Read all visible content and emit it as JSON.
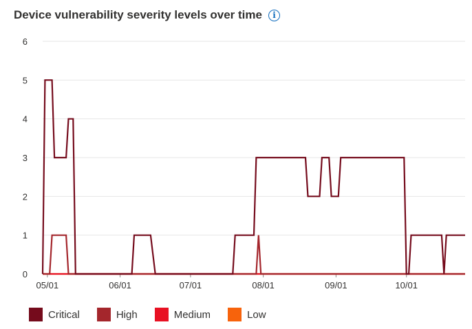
{
  "header": {
    "title": "Device vulnerability severity levels over time",
    "info_glyph": "i"
  },
  "chart_data": {
    "type": "line",
    "title": "Device vulnerability severity levels over time",
    "xlabel": "",
    "ylabel": "",
    "ylim": [
      0,
      6
    ],
    "y_ticks": [
      0,
      1,
      2,
      3,
      4,
      5,
      6
    ],
    "x_range": [
      "2023-04-29",
      "2023-10-26"
    ],
    "x_ticks": [
      {
        "date": "2023-05-01",
        "label": "05/01"
      },
      {
        "date": "2023-06-01",
        "label": "06/01"
      },
      {
        "date": "2023-07-01",
        "label": "07/01"
      },
      {
        "date": "2023-08-01",
        "label": "08/01"
      },
      {
        "date": "2023-09-01",
        "label": "09/01"
      },
      {
        "date": "2023-10-01",
        "label": "10/01"
      }
    ],
    "grid": true,
    "legend_position": "bottom-left",
    "series": [
      {
        "name": "Low",
        "color": "#f7630c",
        "points": [
          [
            "2023-04-29",
            0
          ],
          [
            "2023-10-26",
            0
          ]
        ]
      },
      {
        "name": "Medium",
        "color": "#e81123",
        "points": [
          [
            "2023-04-29",
            0
          ],
          [
            "2023-10-26",
            0
          ]
        ]
      },
      {
        "name": "High",
        "color": "#a4262c",
        "points": [
          [
            "2023-04-29",
            0
          ],
          [
            "2023-05-02",
            0
          ],
          [
            "2023-05-03",
            1
          ],
          [
            "2023-05-09",
            1
          ],
          [
            "2023-05-10",
            0
          ],
          [
            "2023-07-29",
            0
          ],
          [
            "2023-07-30",
            1
          ],
          [
            "2023-07-31",
            0
          ],
          [
            "2023-10-26",
            0
          ]
        ]
      },
      {
        "name": "Critical",
        "color": "#750b1c",
        "points": [
          [
            "2023-04-29",
            0
          ],
          [
            "2023-04-30",
            5
          ],
          [
            "2023-05-03",
            5
          ],
          [
            "2023-05-04",
            3
          ],
          [
            "2023-05-09",
            3
          ],
          [
            "2023-05-10",
            4
          ],
          [
            "2023-05-12",
            4
          ],
          [
            "2023-05-13",
            0
          ],
          [
            "2023-06-06",
            0
          ],
          [
            "2023-06-07",
            1
          ],
          [
            "2023-06-14",
            1
          ],
          [
            "2023-06-16",
            0
          ],
          [
            "2023-07-19",
            0
          ],
          [
            "2023-07-20",
            1
          ],
          [
            "2023-07-28",
            1
          ],
          [
            "2023-07-29",
            3
          ],
          [
            "2023-08-19",
            3
          ],
          [
            "2023-08-20",
            2
          ],
          [
            "2023-08-25",
            2
          ],
          [
            "2023-08-26",
            3
          ],
          [
            "2023-08-29",
            3
          ],
          [
            "2023-08-30",
            2
          ],
          [
            "2023-09-02",
            2
          ],
          [
            "2023-09-03",
            3
          ],
          [
            "2023-09-30",
            3
          ],
          [
            "2023-10-01",
            0
          ],
          [
            "2023-10-02",
            0
          ],
          [
            "2023-10-03",
            1
          ],
          [
            "2023-10-16",
            1
          ],
          [
            "2023-10-17",
            0
          ],
          [
            "2023-10-18",
            1
          ],
          [
            "2023-10-26",
            1
          ]
        ]
      }
    ]
  },
  "legend": [
    {
      "label": "Critical",
      "color": "#750b1c"
    },
    {
      "label": "High",
      "color": "#a4262c"
    },
    {
      "label": "Medium",
      "color": "#e81123"
    },
    {
      "label": "Low",
      "color": "#f7630c"
    }
  ]
}
